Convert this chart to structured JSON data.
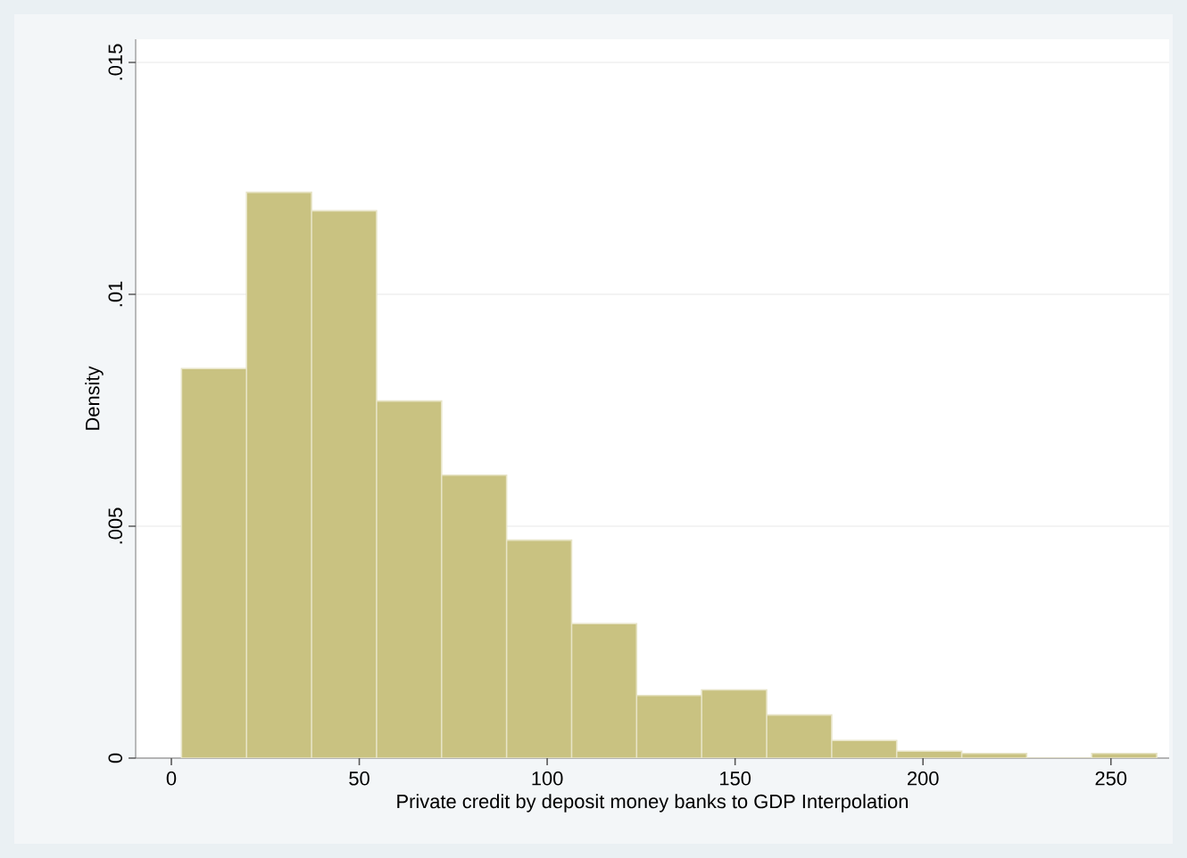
{
  "chart_data": {
    "type": "histogram",
    "xlabel": "Private credit by deposit money banks to GDP Interpolation",
    "ylabel": "Density",
    "bins": [
      2.7,
      20.0,
      37.3,
      54.6,
      71.9,
      89.2,
      106.5,
      123.8,
      141.1,
      158.4,
      175.7,
      193.0,
      210.3,
      227.6,
      244.9,
      262.2
    ],
    "values": [
      0.0084,
      0.0122,
      0.0118,
      0.0077,
      0.0061,
      0.0047,
      0.0029,
      0.00135,
      0.00147,
      0.00093,
      0.00038,
      0.00015,
      0.0001,
      0,
      0.0001
    ],
    "color": "#c9c281",
    "xlim": [
      -9.5,
      265.5
    ],
    "ylim": [
      0,
      0.0155
    ],
    "xticks": [
      0,
      50,
      100,
      150,
      200,
      250
    ],
    "yticks": [
      0,
      {
        "value": 0.005,
        "label": ".005"
      },
      {
        "value": 0.01,
        "label": ".01"
      },
      {
        "value": 0.015,
        "label": ".015"
      }
    ],
    "grid": "y"
  }
}
